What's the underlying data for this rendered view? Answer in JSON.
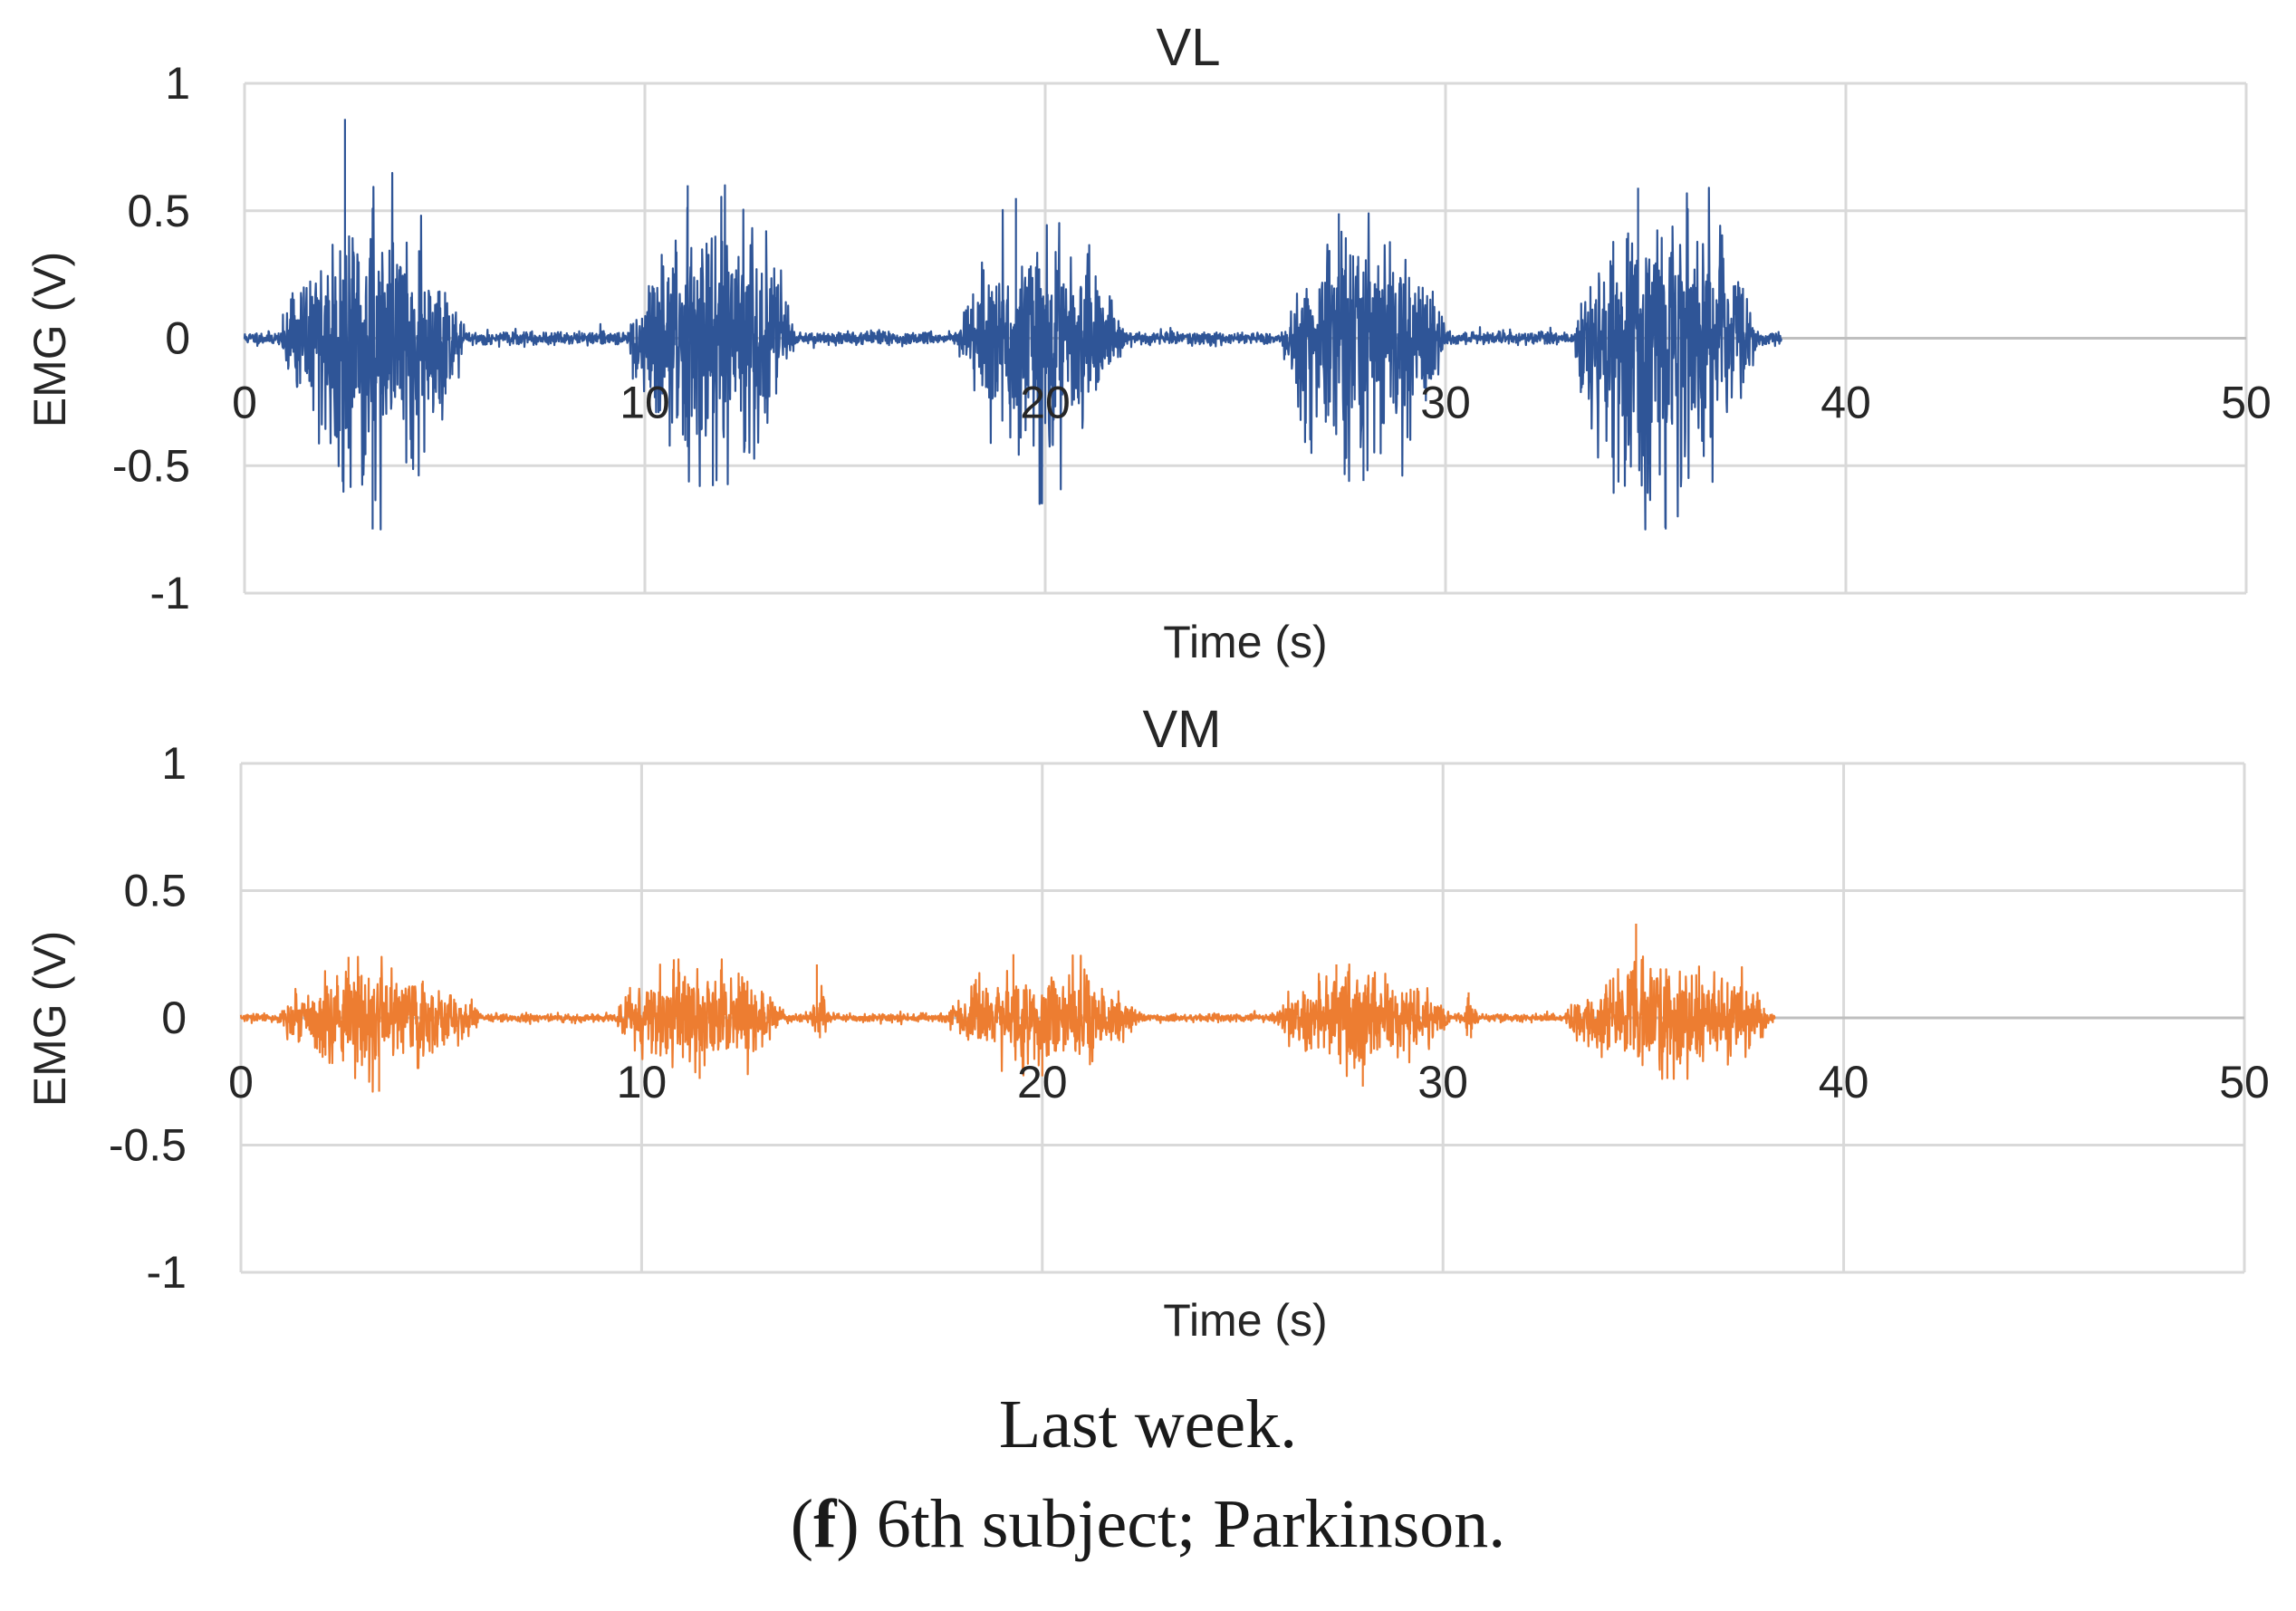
{
  "chart_data": [
    {
      "type": "line",
      "title": "VL",
      "xlabel": "Time (s)",
      "ylabel": "EMG (V)",
      "xlim": [
        0,
        50
      ],
      "ylim": [
        -1,
        1
      ],
      "x_ticks": [
        "0",
        "10",
        "20",
        "30",
        "40",
        "50"
      ],
      "y_ticks": [
        "1",
        "0.5",
        "0",
        "-0.5",
        "-1"
      ],
      "grid": true,
      "series": [
        {
          "name": "VL",
          "color": "#2F5597",
          "signal_end_s": 38.4,
          "baseline_noise_v": 0.012,
          "bursts": [
            {
              "start_s": 0.9,
              "end_s": 5.5,
              "pos_peak_v": 0.86,
              "neg_peak_v": -0.75,
              "typical_pos_v": 0.42,
              "typical_neg_v": -0.48
            },
            {
              "start_s": 9.6,
              "end_s": 13.8,
              "pos_peak_v": 0.6,
              "neg_peak_v": -0.58,
              "typical_pos_v": 0.4,
              "typical_neg_v": -0.45
            },
            {
              "start_s": 17.8,
              "end_s": 22.0,
              "pos_peak_v": 0.55,
              "neg_peak_v": -0.65,
              "typical_pos_v": 0.32,
              "typical_neg_v": -0.4
            },
            {
              "start_s": 25.9,
              "end_s": 30.0,
              "pos_peak_v": 0.49,
              "neg_peak_v": -0.56,
              "typical_pos_v": 0.38,
              "typical_neg_v": -0.45
            },
            {
              "start_s": 33.2,
              "end_s": 37.8,
              "pos_peak_v": 0.59,
              "neg_peak_v": -0.75,
              "typical_pos_v": 0.45,
              "typical_neg_v": -0.55
            }
          ]
        }
      ]
    },
    {
      "type": "line",
      "title": "VM",
      "xlabel": "Time (s)",
      "ylabel": "EMG (V)",
      "xlim": [
        0,
        50
      ],
      "ylim": [
        -1,
        1
      ],
      "x_ticks": [
        "0",
        "10",
        "20",
        "30",
        "40",
        "50"
      ],
      "y_ticks": [
        "1",
        "0.5",
        "0",
        "-0.5",
        "-1"
      ],
      "grid": true,
      "series": [
        {
          "name": "VM",
          "color": "#ED7D31",
          "signal_end_s": 38.3,
          "baseline_noise_v": 0.008,
          "bursts": [
            {
              "start_s": 0.9,
              "end_s": 6.0,
              "pos_peak_v": 0.24,
              "neg_peak_v": -0.29,
              "typical_pos_v": 0.17,
              "typical_neg_v": -0.18
            },
            {
              "start_s": 9.3,
              "end_s": 13.6,
              "pos_peak_v": 0.23,
              "neg_peak_v": -0.24,
              "typical_pos_v": 0.16,
              "typical_neg_v": -0.16
            },
            {
              "start_s": 14.2,
              "end_s": 14.7,
              "pos_peak_v": 0.21,
              "neg_peak_v": -0.08,
              "typical_pos_v": 0.12,
              "typical_neg_v": -0.06
            },
            {
              "start_s": 17.6,
              "end_s": 22.4,
              "pos_peak_v": 0.25,
              "neg_peak_v": -0.23,
              "typical_pos_v": 0.18,
              "typical_neg_v": -0.17
            },
            {
              "start_s": 25.8,
              "end_s": 30.2,
              "pos_peak_v": 0.21,
              "neg_peak_v": -0.27,
              "typical_pos_v": 0.15,
              "typical_neg_v": -0.17
            },
            {
              "start_s": 30.5,
              "end_s": 30.9,
              "pos_peak_v": 0.1,
              "neg_peak_v": -0.08,
              "typical_pos_v": 0.06,
              "typical_neg_v": -0.05
            },
            {
              "start_s": 33.0,
              "end_s": 38.2,
              "pos_peak_v": 0.37,
              "neg_peak_v": -0.24,
              "typical_pos_v": 0.18,
              "typical_neg_v": -0.17
            }
          ]
        }
      ]
    }
  ],
  "caption": {
    "line1": "Last week.",
    "label_letter": "f",
    "line2_rest": " 6th subject; Parkinson."
  }
}
